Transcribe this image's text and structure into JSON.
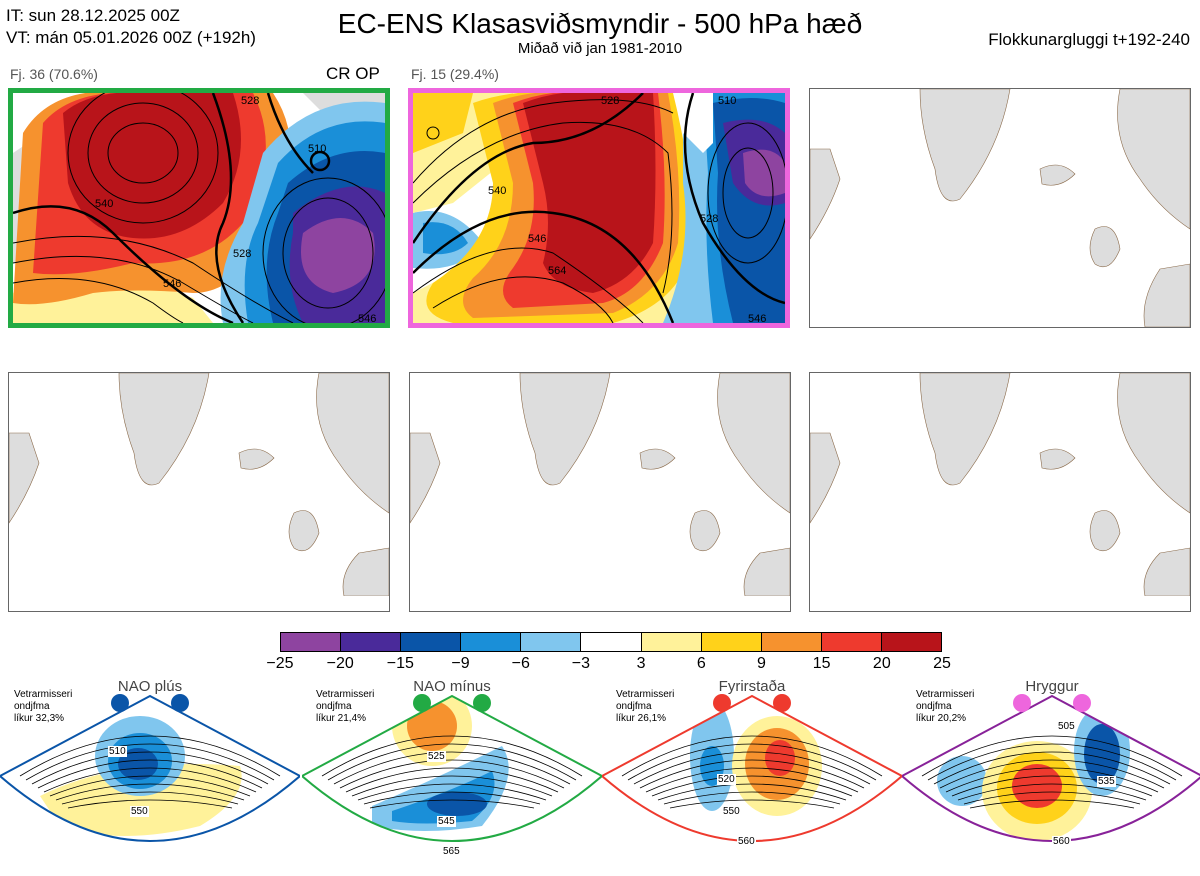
{
  "header": {
    "it_line": "IT: sun 28.12.2025 00Z",
    "vt_line": "VT: mán 05.01.2026 00Z  (+192h)",
    "title": "EC-ENS Klasasviðsmyndir - 500 hPa hæð",
    "subtitle": "Miðað við jan 1981-2010",
    "right": "Flokkunargluggi t+192-240"
  },
  "panels": [
    {
      "label": "Fj. 36 (70.6%)",
      "tag": "CR OP",
      "frame_color": "#22aa44",
      "contours": [
        "540",
        "528",
        "546",
        "528",
        "510",
        "546"
      ]
    },
    {
      "label": "Fj. 15 (29.4%)",
      "tag": "",
      "frame_color": "#ee66dd",
      "contours": [
        "510",
        "528",
        "540",
        "546",
        "564",
        "528",
        "546"
      ]
    }
  ],
  "colorbar": {
    "ticks": [
      "−25",
      "−20",
      "−15",
      "−9",
      "−6",
      "−3",
      "3",
      "6",
      "9",
      "15",
      "20",
      "25"
    ],
    "colors": [
      "#8e44a0",
      "#4a2a9a",
      "#0a55a8",
      "#1a8fd8",
      "#80c6ee",
      "#ffffff",
      "#fff29a",
      "#ffd21a",
      "#f6922e",
      "#ee3a2e",
      "#b8141a"
    ]
  },
  "regimes": [
    {
      "name": "NAO plús",
      "note1": "Vetrarmisseri",
      "note2": "ondjfma",
      "note3": "líkur 32,3%",
      "color": "#0a55a8",
      "dot": "#0a55a8",
      "contours": [
        "510",
        "550"
      ]
    },
    {
      "name": "NAO mínus",
      "note1": "Vetrarmisseri",
      "note2": "ondjfma",
      "note3": "líkur 21,4%",
      "color": "#22aa44",
      "dot": "#22aa44",
      "contours": [
        "525",
        "545",
        "565"
      ]
    },
    {
      "name": "Fyrirstaða",
      "note1": "Vetrarmisseri",
      "note2": "ondjfma",
      "note3": "líkur 26,1%",
      "color": "#ee3a2e",
      "dot": "#ee3a2e",
      "contours": [
        "520",
        "550",
        "560"
      ]
    },
    {
      "name": "Hryggur",
      "note1": "Vetrarmisseri",
      "note2": "ondjfma",
      "note3": "líkur 20,2%",
      "color": "#882299",
      "dot": "#ee66dd",
      "contours": [
        "505",
        "535",
        "560"
      ]
    }
  ]
}
